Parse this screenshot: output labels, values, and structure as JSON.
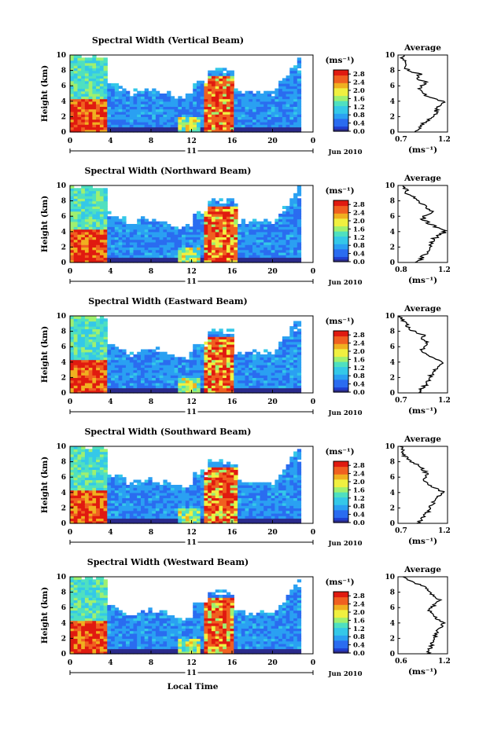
{
  "figure": {
    "x_label": "Local Time",
    "date_label": "Jun 2010",
    "day_label": "11",
    "colorbar_unit": "(ms⁻¹)",
    "profile_title": "Average",
    "profile_xlabel": "(ms⁻¹)",
    "y_label": "Height (km)"
  },
  "colors": {
    "colormap": [
      "#2b2b8c",
      "#1f3fd0",
      "#2a6cf0",
      "#2aa0f2",
      "#34c8e8",
      "#4fe0c0",
      "#9ff070",
      "#f0f040",
      "#f0b020",
      "#f06020",
      "#e01a10"
    ],
    "missing": "#ffffff"
  },
  "chart_data": [
    {
      "type": "heatmap",
      "title": "Spectral Width (Vertical Beam)",
      "x_ticks": [
        "0",
        "4",
        "8",
        "12",
        "16",
        "20",
        "0"
      ],
      "y_ticks": [
        "0",
        "2",
        "4",
        "6",
        "8",
        "10"
      ],
      "xlim": [
        0,
        24
      ],
      "ylim": [
        0,
        10
      ],
      "colorbar_ticks": [
        "0.0",
        "0.4",
        "0.8",
        "1.2",
        "1.6",
        "2.0",
        "2.4",
        "2.8"
      ],
      "colorbar_range": [
        0,
        3.0
      ],
      "profile": {
        "title": "Average",
        "x_ticks": [
          "0.7",
          "1.2"
        ],
        "xlim": [
          0.7,
          1.2
        ],
        "y": [
          0,
          0.5,
          1,
          1.5,
          2,
          2.5,
          3,
          3.5,
          4,
          4.5,
          5,
          5.5,
          6,
          6.5,
          7,
          7.5,
          8,
          8.5,
          9,
          9.5,
          10
        ],
        "values": [
          0.88,
          0.92,
          0.95,
          1.0,
          1.06,
          1.08,
          1.1,
          1.12,
          1.16,
          1.02,
          0.95,
          0.92,
          0.94,
          0.98,
          0.88,
          0.92,
          0.8,
          0.76,
          0.78,
          0.74,
          0.76
        ]
      }
    },
    {
      "type": "heatmap",
      "title": "Spectral Width (Northward Beam)",
      "x_ticks": [
        "0",
        "4",
        "8",
        "12",
        "16",
        "20",
        "0"
      ],
      "y_ticks": [
        "0",
        "2",
        "4",
        "6",
        "8",
        "10"
      ],
      "xlim": [
        0,
        24
      ],
      "ylim": [
        0,
        10
      ],
      "colorbar_ticks": [
        "0.0",
        "0.4",
        "0.8",
        "1.2",
        "1.6",
        "2.0",
        "2.4",
        "2.8"
      ],
      "colorbar_range": [
        0,
        3.0
      ],
      "profile": {
        "title": "Average",
        "x_ticks": [
          "0.8",
          "1.2"
        ],
        "xlim": [
          0.8,
          1.2
        ],
        "y": [
          0,
          0.5,
          1,
          1.5,
          2,
          2.5,
          3,
          3.5,
          4,
          4.5,
          5,
          5.5,
          6,
          6.5,
          7,
          7.5,
          8,
          8.5,
          9,
          9.5,
          10
        ],
        "values": [
          0.95,
          0.98,
          1.02,
          1.05,
          1.06,
          1.07,
          1.09,
          1.12,
          1.18,
          1.12,
          1.06,
          1.0,
          1.02,
          1.08,
          1.04,
          1.02,
          0.96,
          0.92,
          0.88,
          0.86,
          0.84
        ]
      }
    },
    {
      "type": "heatmap",
      "title": "Spectral Width (Eastward Beam)",
      "x_ticks": [
        "0",
        "4",
        "8",
        "12",
        "16",
        "20",
        "0"
      ],
      "y_ticks": [
        "0",
        "2",
        "4",
        "6",
        "8",
        "10"
      ],
      "xlim": [
        0,
        24
      ],
      "ylim": [
        0,
        10
      ],
      "colorbar_ticks": [
        "0.0",
        "0.4",
        "0.8",
        "1.2",
        "1.6",
        "2.0",
        "2.4",
        "2.8"
      ],
      "colorbar_range": [
        0,
        3.0
      ],
      "profile": {
        "title": "Average",
        "x_ticks": [
          "0.7",
          "1.2"
        ],
        "xlim": [
          0.7,
          1.2
        ],
        "y": [
          0,
          0.5,
          1,
          1.5,
          2,
          2.5,
          3,
          3.5,
          4,
          4.5,
          5,
          5.5,
          6,
          6.5,
          7,
          7.5,
          8,
          8.5,
          9,
          9.5,
          10
        ],
        "values": [
          0.92,
          0.94,
          0.98,
          1.0,
          1.02,
          1.04,
          1.08,
          1.1,
          1.14,
          1.05,
          0.98,
          0.95,
          0.94,
          1.0,
          0.92,
          0.96,
          0.86,
          0.8,
          0.78,
          0.74,
          0.72
        ]
      }
    },
    {
      "type": "heatmap",
      "title": "Spectral Width (Southward Beam)",
      "x_ticks": [
        "0",
        "4",
        "8",
        "12",
        "16",
        "20",
        "0"
      ],
      "y_ticks": [
        "0",
        "2",
        "4",
        "6",
        "8",
        "10"
      ],
      "xlim": [
        0,
        24
      ],
      "ylim": [
        0,
        10
      ],
      "colorbar_ticks": [
        "0.0",
        "0.4",
        "0.8",
        "1.2",
        "1.6",
        "2.0",
        "2.4",
        "2.8"
      ],
      "colorbar_range": [
        0,
        3.0
      ],
      "profile": {
        "title": "Average",
        "x_ticks": [
          "0.7",
          "1.2"
        ],
        "xlim": [
          0.7,
          1.2
        ],
        "y": [
          0,
          0.5,
          1,
          1.5,
          2,
          2.5,
          3,
          3.5,
          4,
          4.5,
          5,
          5.5,
          6,
          6.5,
          7,
          7.5,
          8,
          8.5,
          9,
          9.5,
          10
        ],
        "values": [
          0.9,
          0.93,
          0.96,
          1.0,
          1.03,
          1.05,
          1.07,
          1.1,
          1.18,
          1.08,
          1.02,
          0.98,
          0.97,
          0.99,
          0.94,
          0.92,
          0.84,
          0.78,
          0.76,
          0.74,
          0.72
        ]
      }
    },
    {
      "type": "heatmap",
      "title": "Spectral Width (Westward Beam)",
      "x_ticks": [
        "0",
        "4",
        "8",
        "12",
        "16",
        "20",
        "0"
      ],
      "y_ticks": [
        "0",
        "2",
        "4",
        "6",
        "8",
        "10"
      ],
      "xlim": [
        0,
        24
      ],
      "ylim": [
        0,
        10
      ],
      "colorbar_ticks": [
        "0.0",
        "0.4",
        "0.8",
        "1.2",
        "1.6",
        "2.0",
        "2.4",
        "2.8"
      ],
      "colorbar_range": [
        0,
        3.0
      ],
      "profile": {
        "title": "Average",
        "x_ticks": [
          "0.6",
          "1.2"
        ],
        "xlim": [
          0.6,
          1.2
        ],
        "y": [
          0,
          0.5,
          1,
          1.5,
          2,
          2.5,
          3,
          3.5,
          4,
          4.5,
          5,
          5.5,
          6,
          6.5,
          7,
          7.5,
          8,
          8.5,
          9,
          9.5,
          10
        ],
        "values": [
          0.96,
          0.98,
          1.0,
          1.02,
          1.04,
          1.06,
          1.08,
          1.12,
          1.16,
          1.08,
          1.02,
          0.98,
          1.0,
          1.06,
          1.1,
          1.02,
          1.0,
          0.96,
          0.86,
          0.72,
          0.66
        ]
      }
    }
  ]
}
